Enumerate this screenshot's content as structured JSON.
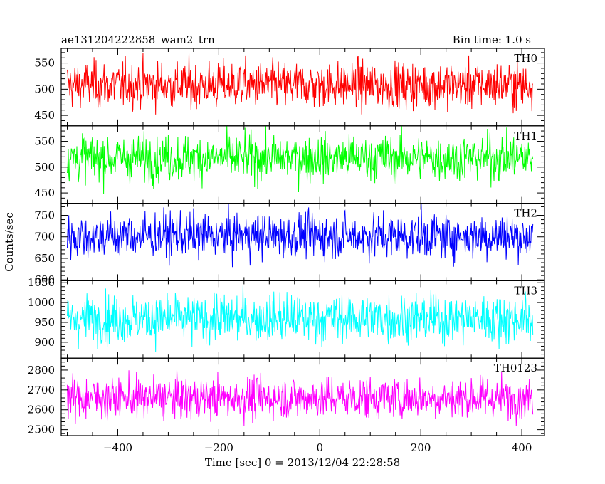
{
  "title": "ae131204222858_wam2_trn",
  "bin_time": "Bin time: 1.0 s",
  "xlabel": "Time [sec] 0 = 2013/12/04 22:28:58",
  "ylabel": "Counts/sec",
  "colors": {
    "TH0": "#ff0000",
    "TH1": "#00ff00",
    "TH2": "#0000ff",
    "TH3": "#00ffff",
    "TH0123": "#ff00ff"
  },
  "chart_data": {
    "type": "line",
    "x_range": [
      -500,
      422
    ],
    "xlim": [
      -512,
      445
    ],
    "x_ticks": [
      -400,
      -200,
      0,
      200,
      400
    ],
    "x_tick_labels": [
      "−400",
      "−200",
      "0",
      "200",
      "400"
    ],
    "grid": false,
    "panels": [
      {
        "name": "TH0",
        "color": "#ff0000",
        "ylim": [
          430,
          578
        ],
        "y_ticks": [
          450,
          500,
          550
        ],
        "y_tick_labels": [
          "450",
          "500",
          "550"
        ],
        "mean": 508,
        "spread": 22
      },
      {
        "name": "TH1",
        "color": "#00ff00",
        "ylim": [
          430,
          580
        ],
        "y_ticks": [
          450,
          500,
          550
        ],
        "y_tick_labels": [
          "450",
          "500",
          "550"
        ],
        "mean": 518,
        "spread": 22
      },
      {
        "name": "TH2",
        "color": "#0000ff",
        "ylim": [
          598,
          778
        ],
        "y_ticks": [
          600,
          650,
          700,
          750
        ],
        "y_tick_labels": [
          "600",
          "650",
          "700",
          "750"
        ],
        "mean": 702,
        "spread": 26
      },
      {
        "name": "TH3",
        "color": "#00ffff",
        "ylim": [
          860,
          1055
        ],
        "y_ticks": [
          900,
          950,
          1000,
          1050
        ],
        "y_tick_labels": [
          "900",
          "950",
          "1000",
          "1050"
        ],
        "mean": 960,
        "spread": 30
      },
      {
        "name": "TH0123",
        "color": "#ff00ff",
        "ylim": [
          2470,
          2860
        ],
        "y_ticks": [
          2500,
          2600,
          2700,
          2800
        ],
        "y_tick_labels": [
          "2500",
          "2600",
          "2700",
          "2800"
        ],
        "mean": 2660,
        "spread": 52
      }
    ]
  }
}
